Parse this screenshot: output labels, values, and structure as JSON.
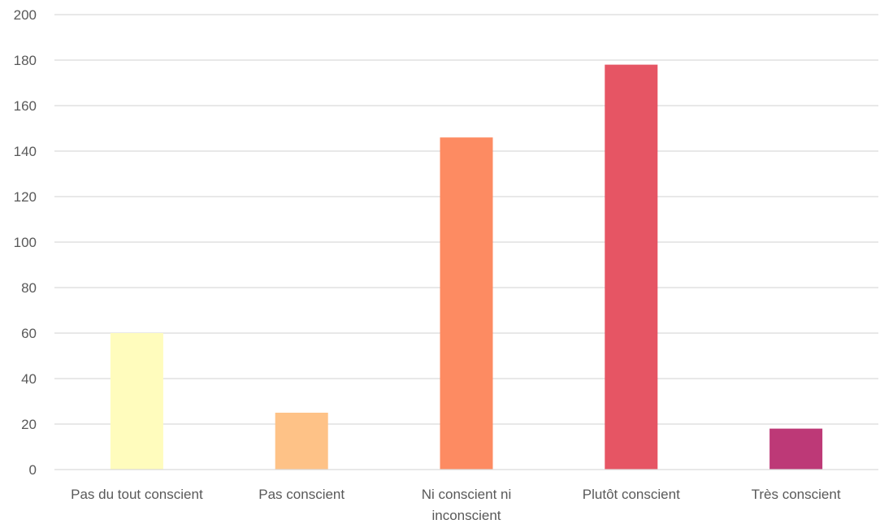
{
  "chart_data": {
    "type": "bar",
    "title": "",
    "xlabel": "",
    "ylabel": "",
    "categories": [
      [
        "Pas du tout conscient"
      ],
      [
        "Pas conscient"
      ],
      [
        "Ni conscient ni",
        "inconscient"
      ],
      [
        "Plutôt conscient"
      ],
      [
        "Très conscient"
      ]
    ],
    "values": [
      60,
      25,
      146,
      178,
      18
    ],
    "colors": [
      "#fffcbd",
      "#fec287",
      "#fd8b62",
      "#e65564",
      "#bd3977"
    ],
    "ylim": [
      0,
      200
    ],
    "yticks": [
      0,
      20,
      40,
      60,
      80,
      100,
      120,
      140,
      160,
      180,
      200
    ],
    "grid": true,
    "legend": "none"
  }
}
